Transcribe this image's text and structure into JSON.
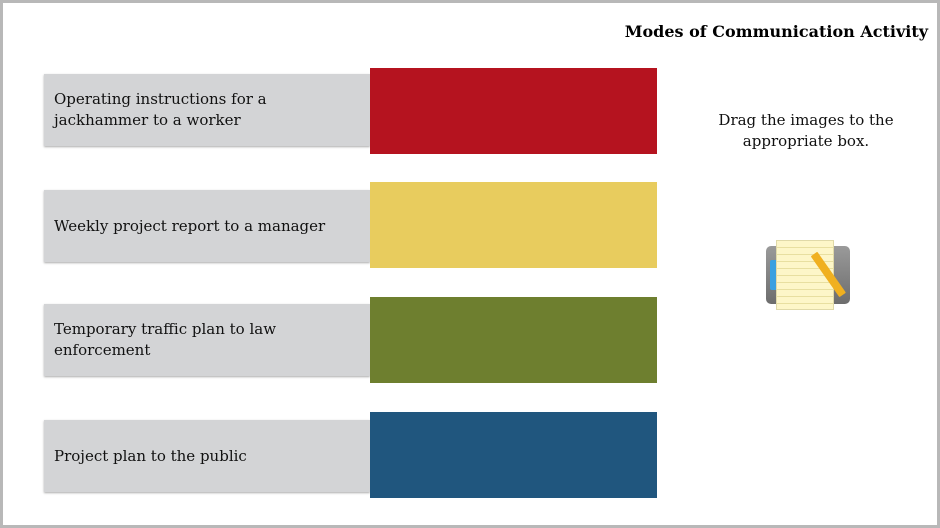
{
  "title": "Modes of Communication Activity",
  "instruction": "Drag the images to the appropriate box.",
  "rows": [
    {
      "label": "Operating instructions for a jackhammer to a worker",
      "color": "#b5131f"
    },
    {
      "label": "Weekly project report to a manager",
      "color": "#e8cc5e"
    },
    {
      "label": "Temporary traffic plan to law enforcement",
      "color": "#6e7f2f"
    },
    {
      "label": "Project plan to the public",
      "color": "#20567e"
    }
  ],
  "draggable_icon": "notepad-pencil-icon"
}
